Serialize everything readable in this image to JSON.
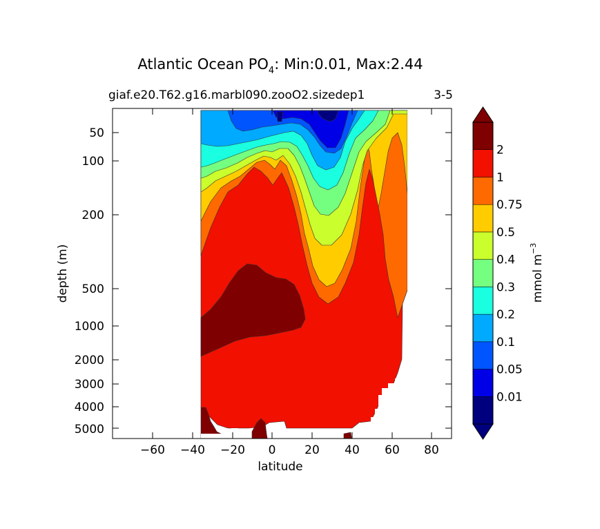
{
  "chart_data": {
    "type": "contour",
    "title": "Atlantic Ocean PO",
    "title_subscript": "4",
    "title_suffix": ": Min:0.01, Max:2.44",
    "subtitle_left": "giaf.e20.T62.g16.marbl090.zooO2.sizedep1",
    "subtitle_right": "3-5",
    "xlabel": "latitude",
    "ylabel": "depth (m)",
    "xlim": [
      -80,
      90
    ],
    "x_ticks": [
      -60,
      -40,
      -20,
      0,
      20,
      40,
      60,
      80
    ],
    "x_tick_labels": [
      "−60",
      "−40",
      "−20",
      "0",
      "20",
      "40",
      "60",
      "80"
    ],
    "y_ticks": [
      50,
      100,
      200,
      500,
      1000,
      2000,
      3000,
      4000,
      5000
    ],
    "y_tick_labels": [
      "50",
      "100",
      "200",
      "500",
      "1000",
      "2000",
      "3000",
      "4000",
      "5000"
    ],
    "y_scale": "nonlinear (depth, inverted)",
    "data_lat_range": [
      -34,
      68
    ],
    "colorbar": {
      "label": "mmol m",
      "label_exponent": "−3",
      "levels": [
        "0.01",
        "0.05",
        "0.1",
        "0.2",
        "0.3",
        "0.4",
        "0.5",
        "0.75",
        "1",
        "2"
      ],
      "colors": [
        "#00007f",
        "#0000e6",
        "#0055ff",
        "#00aaff",
        "#1affe0",
        "#75ff80",
        "#caff2d",
        "#ffcc00",
        "#ff6a00",
        "#f21000",
        "#7f0000"
      ],
      "extend": "both"
    },
    "bands": [
      {
        "range": "0.01–0.05",
        "color": "#00007f"
      },
      {
        "range": "0.05–0.1",
        "color": "#0000e6"
      },
      {
        "range": "0.1–0.2",
        "color": "#0055ff"
      },
      {
        "range": "0.2–0.3",
        "color": "#00aaff"
      },
      {
        "range": "0.3–0.4",
        "color": "#1affe0"
      },
      {
        "range": "0.4–0.5",
        "color": "#75ff80"
      },
      {
        "range": "0.5–0.75",
        "color": "#caff2d"
      },
      {
        "range": "0.75–1",
        "color": "#ffcc00"
      },
      {
        "range": "1–2",
        "color": "#ff6a00"
      },
      {
        "range": "2–2.44",
        "color": "#f21000"
      },
      {
        "range": "> 2",
        "color": "#7f0000"
      }
    ]
  }
}
